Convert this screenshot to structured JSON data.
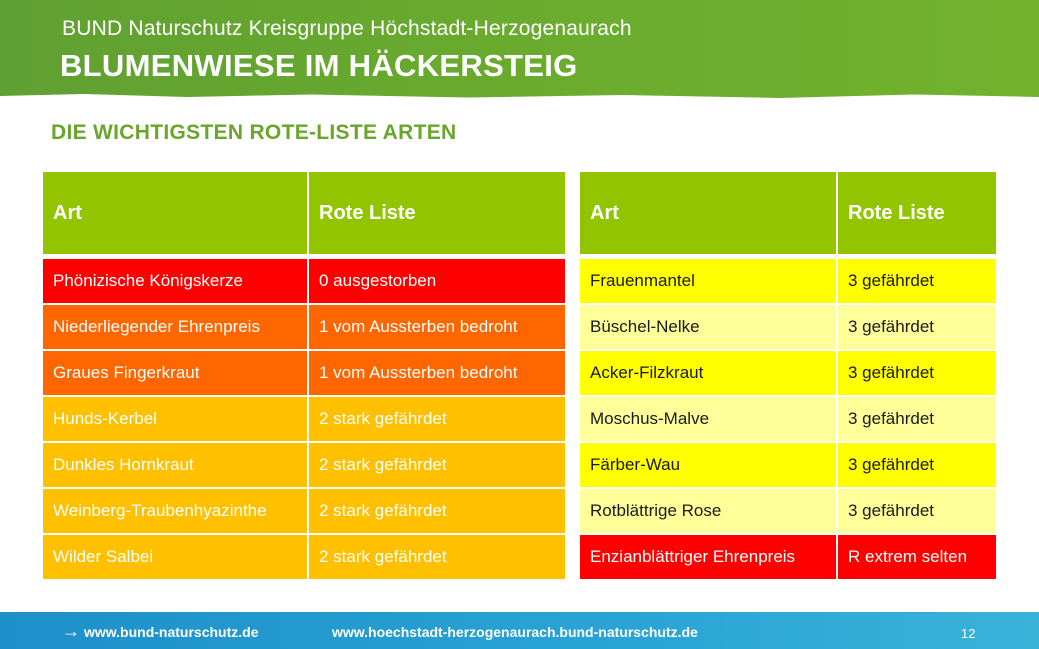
{
  "header": {
    "org": "BUND Naturschutz Kreisgruppe Höchstadt-Herzogenaurach",
    "title": "BLUMENWIESE IM HÄCKERSTEIG"
  },
  "subtitle": "DIE WICHTIGSTEN ROTE-LISTE ARTEN",
  "tables": {
    "left": {
      "headers": [
        "Art",
        "Rote Liste"
      ],
      "rows": [
        {
          "art": "Phönizische Königskerze",
          "rl": "0 ausgestorben",
          "color": "#ff0000"
        },
        {
          "art": "Niederliegender Ehrenpreis",
          "rl": "1 vom Aussterben bedroht",
          "color": "#ff6600"
        },
        {
          "art": "Graues Fingerkraut",
          "rl": "1 vom Aussterben bedroht",
          "color": "#ff6600"
        },
        {
          "art": "Hunds-Kerbel",
          "rl": "2 stark gefährdet",
          "color": "#ffc000"
        },
        {
          "art": "Dunkles Hornkraut",
          "rl": "2 stark gefährdet",
          "color": "#ffc000"
        },
        {
          "art": "Weinberg-Traubenhyazinthe",
          "rl": "2 stark gefährdet",
          "color": "#ffc000"
        },
        {
          "art": "Wilder Salbei",
          "rl": "2 stark gefährdet",
          "color": "#ffc000"
        }
      ]
    },
    "right": {
      "headers": [
        "Art",
        "Rote Liste"
      ],
      "rows": [
        {
          "art": "Frauenmantel",
          "rl": "3 gefährdet",
          "color": "#ffff00"
        },
        {
          "art": "Büschel-Nelke",
          "rl": "3 gefährdet",
          "color": "#ffff99"
        },
        {
          "art": "Acker-Filzkraut",
          "rl": "3 gefährdet",
          "color": "#ffff00"
        },
        {
          "art": "Moschus-Malve",
          "rl": "3 gefährdet",
          "color": "#ffff99"
        },
        {
          "art": "Färber-Wau",
          "rl": "3 gefährdet",
          "color": "#ffff00"
        },
        {
          "art": "Rotblättrige Rose",
          "rl": "3 gefährdet",
          "color": "#ffff99"
        },
        {
          "art": "Enzianblättriger Ehrenpreis",
          "rl": "R extrem selten",
          "color": "#ff0000"
        }
      ]
    }
  },
  "colors": {
    "header_green": "#6aab2e",
    "table_header_green": "#92c500",
    "footer_blue": "#2aa4d5"
  },
  "footer": {
    "arrow_icon": "arrow-right-icon",
    "url1": "www.bund-naturschutz.de",
    "url2": "www.hoechstadt-herzogenaurach.bund-naturschutz.de",
    "page": "12"
  }
}
